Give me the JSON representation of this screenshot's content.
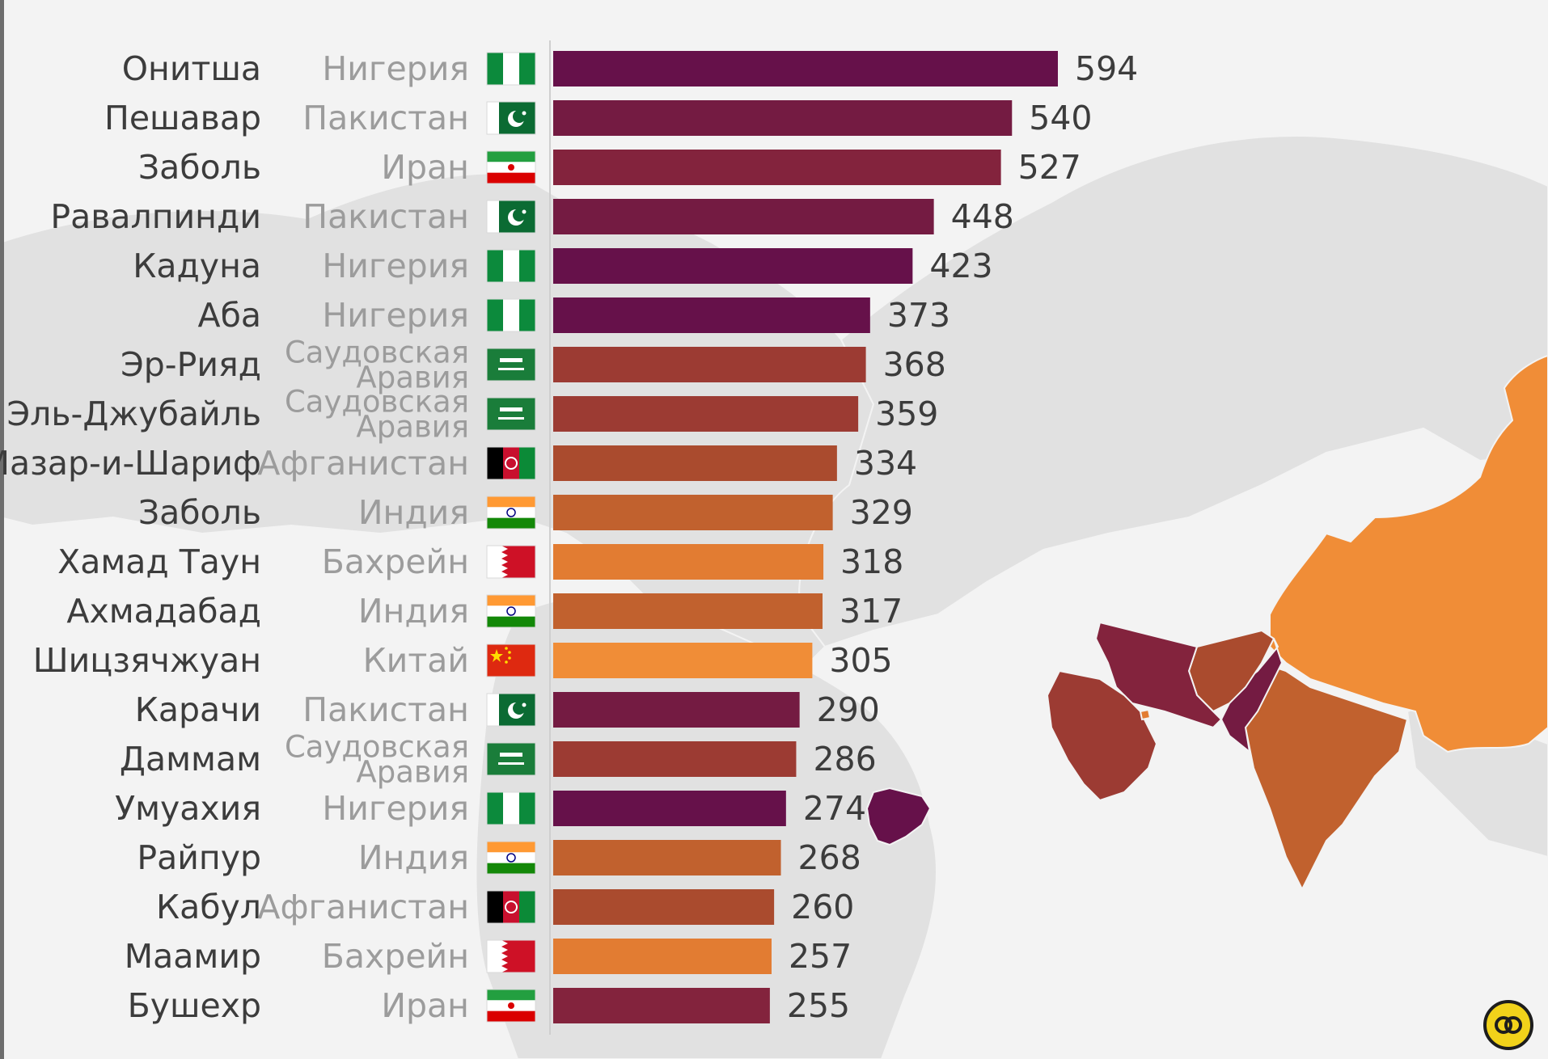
{
  "colors": {
    "background": "#f3f3f3",
    "map_land": "#e1e1e1",
    "nigeria": "#66114a",
    "pakistan": "#741b42",
    "iran": "#83233d",
    "saudi_arabia": "#9c3b33",
    "afghanistan": "#aa4b2e",
    "india": "#c1612e",
    "bahrain": "#e27c32",
    "china": "#f08d37"
  },
  "badge": {
    "icon": "circular-logo-icon"
  },
  "chart_data": {
    "type": "bar",
    "orientation": "horizontal",
    "title": "",
    "xlabel": "",
    "ylabel": "",
    "xlim": [
      0,
      594
    ],
    "grid": false,
    "legend": "none",
    "rows": [
      {
        "city": "Онитша",
        "country": "Нигерия",
        "country_lines": [
          "Нигерия"
        ],
        "flag": "nigeria",
        "value": 594,
        "color": "#66114a"
      },
      {
        "city": "Пешавар",
        "country": "Пакистан",
        "country_lines": [
          "Пакистан"
        ],
        "flag": "pakistan",
        "value": 540,
        "color": "#741b42"
      },
      {
        "city": "Заболь",
        "country": "Иран",
        "country_lines": [
          "Иран"
        ],
        "flag": "iran",
        "value": 527,
        "color": "#83233d"
      },
      {
        "city": "Равалпинди",
        "country": "Пакистан",
        "country_lines": [
          "Пакистан"
        ],
        "flag": "pakistan",
        "value": 448,
        "color": "#741b42"
      },
      {
        "city": "Кадуна",
        "country": "Нигерия",
        "country_lines": [
          "Нигерия"
        ],
        "flag": "nigeria",
        "value": 423,
        "color": "#66114a"
      },
      {
        "city": "Аба",
        "country": "Нигерия",
        "country_lines": [
          "Нигерия"
        ],
        "flag": "nigeria",
        "value": 373,
        "color": "#66114a"
      },
      {
        "city": "Эр-Рияд",
        "country": "Саудовская Аравия",
        "country_lines": [
          "Саудовская",
          "Аравия"
        ],
        "flag": "saudi",
        "value": 368,
        "color": "#9c3b33"
      },
      {
        "city": "Эль-Джубайль",
        "country": "Саудовская Аравия",
        "country_lines": [
          "Саудовская",
          "Аравия"
        ],
        "flag": "saudi",
        "value": 359,
        "color": "#9c3b33"
      },
      {
        "city": "Мазар-и-Шариф",
        "country": "Афганистан",
        "country_lines": [
          "Афганистан"
        ],
        "flag": "afghanistan",
        "value": 334,
        "color": "#aa4b2e"
      },
      {
        "city": "Заболь",
        "country": "Индия",
        "country_lines": [
          "Индия"
        ],
        "flag": "india",
        "value": 329,
        "color": "#c1612e"
      },
      {
        "city": "Хамад Таун",
        "country": "Бахрейн",
        "country_lines": [
          "Бахрейн"
        ],
        "flag": "bahrain",
        "value": 318,
        "color": "#e27c32"
      },
      {
        "city": "Ахмадабад",
        "country": "Индия",
        "country_lines": [
          "Индия"
        ],
        "flag": "india",
        "value": 317,
        "color": "#c1612e"
      },
      {
        "city": "Шицзячжуан",
        "country": "Китай",
        "country_lines": [
          "Китай"
        ],
        "flag": "china",
        "value": 305,
        "color": "#f08d37"
      },
      {
        "city": "Карачи",
        "country": "Пакистан",
        "country_lines": [
          "Пакистан"
        ],
        "flag": "pakistan",
        "value": 290,
        "color": "#741b42"
      },
      {
        "city": "Даммам",
        "country": "Саудовская Аравия",
        "country_lines": [
          "Саудовская",
          "Аравия"
        ],
        "flag": "saudi",
        "value": 286,
        "color": "#9c3b33"
      },
      {
        "city": "Умуахия",
        "country": "Нигерия",
        "country_lines": [
          "Нигерия"
        ],
        "flag": "nigeria",
        "value": 274,
        "color": "#66114a"
      },
      {
        "city": "Райпур",
        "country": "Индия",
        "country_lines": [
          "Индия"
        ],
        "flag": "india",
        "value": 268,
        "color": "#c1612e"
      },
      {
        "city": "Кабул",
        "country": "Афганистан",
        "country_lines": [
          "Афганистан"
        ],
        "flag": "afghanistan",
        "value": 260,
        "color": "#aa4b2e"
      },
      {
        "city": "Маамир",
        "country": "Бахрейн",
        "country_lines": [
          "Бахрейн"
        ],
        "flag": "bahrain",
        "value": 257,
        "color": "#e27c32"
      },
      {
        "city": "Бушехр",
        "country": "Иран",
        "country_lines": [
          "Иран"
        ],
        "flag": "iran",
        "value": 255,
        "color": "#83233d"
      }
    ]
  }
}
